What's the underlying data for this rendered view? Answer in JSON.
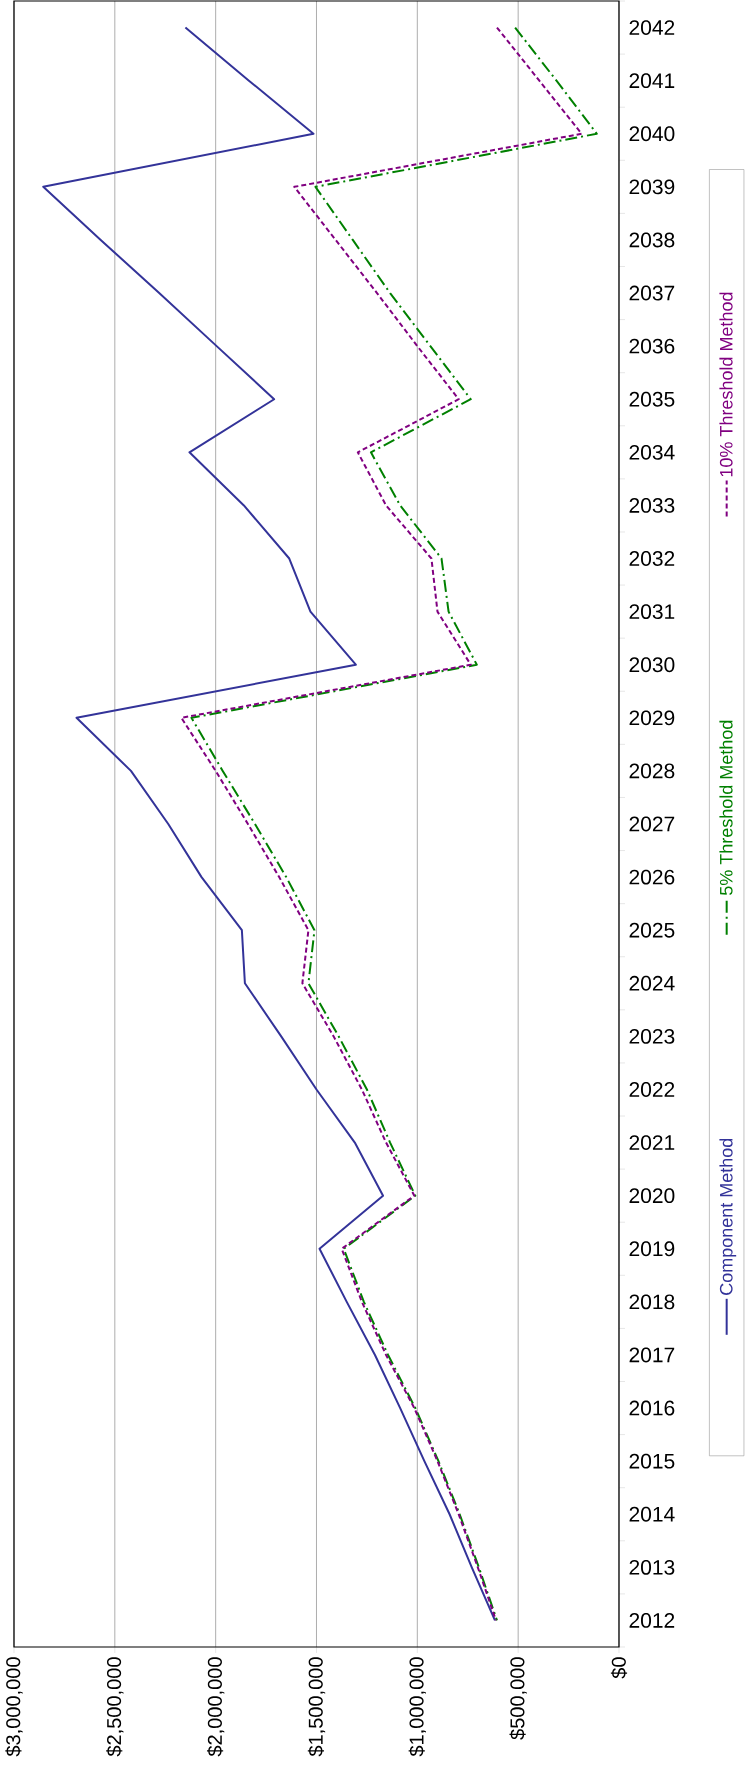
{
  "chart_data": {
    "type": "line",
    "orientation": "horizontal",
    "categories": [
      "2042",
      "2041",
      "2040",
      "2039",
      "2038",
      "2037",
      "2036",
      "2035",
      "2034",
      "2033",
      "2032",
      "2031",
      "2030",
      "2029",
      "2028",
      "2027",
      "2026",
      "2025",
      "2024",
      "2023",
      "2022",
      "2021",
      "2020",
      "2019",
      "2018",
      "2017",
      "2016",
      "2015",
      "2014",
      "2013",
      "2012"
    ],
    "series": [
      {
        "name": "Component Method",
        "color": "#333399",
        "line_style": "solid",
        "values": [
          2150000,
          1835000,
          1515000,
          2855000,
          2570000,
          2280000,
          1995000,
          1710000,
          2130000,
          1860000,
          1635000,
          1530000,
          1305000,
          2690000,
          2420000,
          2235000,
          2070000,
          1870000,
          1855000,
          1675000,
          1500000,
          1310000,
          1170000,
          1485000,
          1350000,
          1210000,
          1085000,
          965000,
          840000,
          730000,
          615000
        ]
      },
      {
        "name": "5% Threshold Method",
        "color": "#008000",
        "line_style": "dashdot",
        "values": [
          515000,
          310000,
          110000,
          1505000,
          1320000,
          1135000,
          935000,
          735000,
          1230000,
          1085000,
          880000,
          845000,
          705000,
          2120000,
          1965000,
          1805000,
          1650000,
          1510000,
          1540000,
          1390000,
          1250000,
          1135000,
          1010000,
          1365000,
          1265000,
          1145000,
          1010000,
          895000,
          790000,
          695000,
          605000
        ]
      },
      {
        "name": "10% Threshold Method",
        "color": "#800080",
        "line_style": "dashed",
        "values": [
          605000,
          395000,
          185000,
          1610000,
          1405000,
          1200000,
          1000000,
          795000,
          1295000,
          1155000,
          930000,
          900000,
          735000,
          2170000,
          2000000,
          1840000,
          1685000,
          1540000,
          1570000,
          1415000,
          1275000,
          1155000,
          1015000,
          1375000,
          1275000,
          1155000,
          1015000,
          900000,
          795000,
          700000,
          610000
        ]
      }
    ],
    "xlim": [
      3000000,
      0
    ],
    "xticks": [
      {
        "value": 3000000,
        "label": "$3,000,000"
      },
      {
        "value": 2500000,
        "label": "$2,500,000"
      },
      {
        "value": 2000000,
        "label": "$2,000,000"
      },
      {
        "value": 1500000,
        "label": "$1,500,000"
      },
      {
        "value": 1000000,
        "label": "$1,000,000"
      },
      {
        "value": 500000,
        "label": "$500,000"
      },
      {
        "value": 0,
        "label": "$0"
      }
    ],
    "grid": "x",
    "legend": "right"
  }
}
